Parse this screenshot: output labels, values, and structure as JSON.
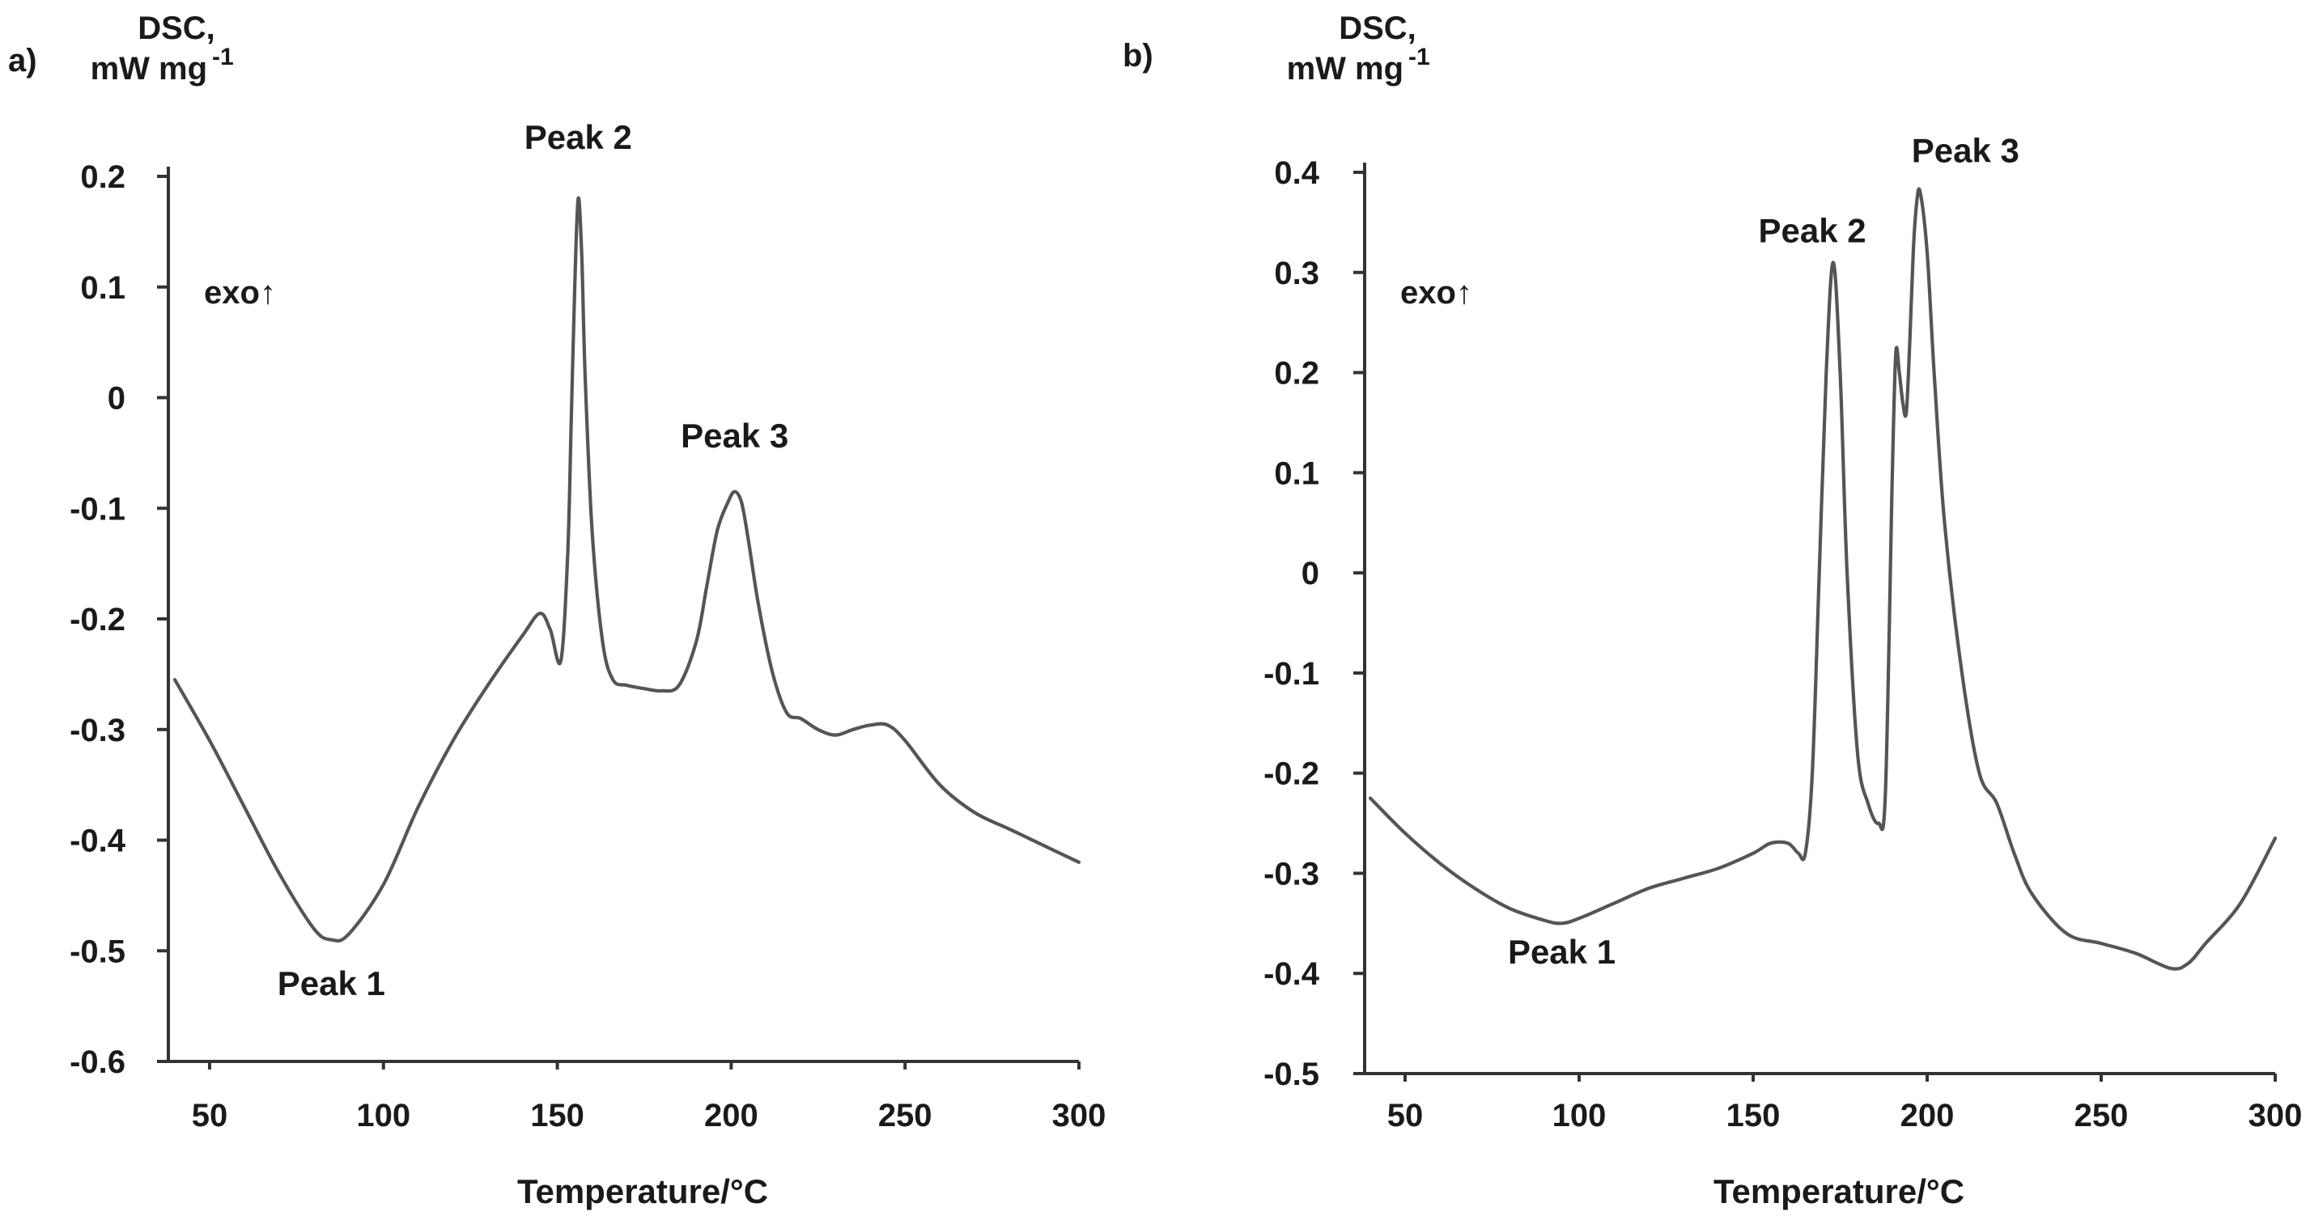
{
  "chart_data": [
    {
      "type": "line",
      "panel_label": "a)",
      "ylabel_line1": "DSC,",
      "ylabel_line2": "mW mg",
      "ylabel_exp": "-1",
      "xlabel": "Temperature/°C",
      "exo_label": "exo↑",
      "xlim": [
        40,
        300
      ],
      "ylim": [
        -0.6,
        0.2
      ],
      "xticks": [
        50,
        100,
        150,
        200,
        250,
        300
      ],
      "yticks": [
        0.2,
        0.1,
        0,
        -0.1,
        -0.2,
        -0.3,
        -0.4,
        -0.5,
        -0.6
      ],
      "ytick_labels": [
        "0.2",
        "0.1",
        "0",
        "-0.1",
        "-0.2",
        "-0.3",
        "-0.4",
        "-0.5",
        "-0.6"
      ],
      "annotations": [
        {
          "text": "Peak 1",
          "x": 85,
          "y": -0.54
        },
        {
          "text": "Peak 2",
          "x": 156,
          "y": 0.225
        },
        {
          "text": "Peak 3",
          "x": 201,
          "y": -0.045
        }
      ],
      "series": [
        {
          "name": "DSC",
          "x": [
            40,
            50,
            60,
            70,
            80,
            85,
            90,
            100,
            110,
            120,
            130,
            140,
            145,
            148,
            151,
            153,
            154,
            155,
            156,
            157,
            158,
            160,
            163,
            166,
            170,
            175,
            180,
            185,
            190,
            193,
            196,
            199,
            201,
            203,
            205,
            208,
            212,
            216,
            220,
            225,
            230,
            235,
            240,
            245,
            250,
            260,
            270,
            280,
            290,
            300
          ],
          "y": [
            -0.255,
            -0.31,
            -0.37,
            -0.43,
            -0.48,
            -0.49,
            -0.485,
            -0.44,
            -0.37,
            -0.31,
            -0.26,
            -0.215,
            -0.195,
            -0.21,
            -0.238,
            -0.14,
            -0.02,
            0.1,
            0.18,
            0.13,
            0.02,
            -0.12,
            -0.22,
            -0.255,
            -0.26,
            -0.263,
            -0.265,
            -0.26,
            -0.22,
            -0.17,
            -0.12,
            -0.095,
            -0.085,
            -0.095,
            -0.13,
            -0.19,
            -0.25,
            -0.285,
            -0.29,
            -0.3,
            -0.305,
            -0.3,
            -0.296,
            -0.296,
            -0.31,
            -0.35,
            -0.375,
            -0.39,
            -0.405,
            -0.42
          ]
        }
      ]
    },
    {
      "type": "line",
      "panel_label": "b)",
      "ylabel_line1": "DSC,",
      "ylabel_line2": "mW mg",
      "ylabel_exp": "-1",
      "xlabel": "Temperature/°C",
      "exo_label": "exo↑",
      "xlim": [
        40,
        300
      ],
      "ylim": [
        -0.5,
        0.4
      ],
      "xticks": [
        50,
        100,
        150,
        200,
        250,
        300
      ],
      "yticks": [
        0.4,
        0.3,
        0.2,
        0.1,
        0,
        -0.1,
        -0.2,
        -0.3,
        -0.4,
        -0.5
      ],
      "ytick_labels": [
        "0.4",
        "0.3",
        "0.2",
        "0.1",
        "0",
        "-0.1",
        "-0.2",
        "-0.3",
        "-0.4",
        "-0.5"
      ],
      "annotations": [
        {
          "text": "Peak 1",
          "x": 95,
          "y": -0.39
        },
        {
          "text": "Peak 2",
          "x": 167,
          "y": 0.33
        },
        {
          "text": "Peak 3",
          "x": 211,
          "y": 0.41
        }
      ],
      "series": [
        {
          "name": "DSC",
          "x": [
            40,
            50,
            60,
            70,
            80,
            90,
            95,
            100,
            110,
            120,
            130,
            140,
            150,
            155,
            160,
            163,
            165,
            167,
            169,
            171,
            173,
            175,
            177,
            180,
            183,
            186,
            188,
            190,
            191,
            192,
            193,
            194,
            195,
            196,
            197,
            198,
            200,
            202,
            205,
            210,
            215,
            220,
            225,
            230,
            240,
            250,
            260,
            270,
            275,
            280,
            290,
            300
          ],
          "y": [
            -0.225,
            -0.26,
            -0.29,
            -0.315,
            -0.335,
            -0.347,
            -0.35,
            -0.345,
            -0.33,
            -0.315,
            -0.305,
            -0.295,
            -0.28,
            -0.27,
            -0.27,
            -0.28,
            -0.28,
            -0.2,
            0.0,
            0.2,
            0.31,
            0.2,
            0.0,
            -0.18,
            -0.23,
            -0.25,
            -0.22,
            0.1,
            0.22,
            0.2,
            0.17,
            0.16,
            0.23,
            0.32,
            0.37,
            0.38,
            0.32,
            0.2,
            0.05,
            -0.1,
            -0.2,
            -0.23,
            -0.28,
            -0.32,
            -0.36,
            -0.37,
            -0.38,
            -0.395,
            -0.39,
            -0.37,
            -0.33,
            -0.265
          ]
        }
      ]
    }
  ]
}
